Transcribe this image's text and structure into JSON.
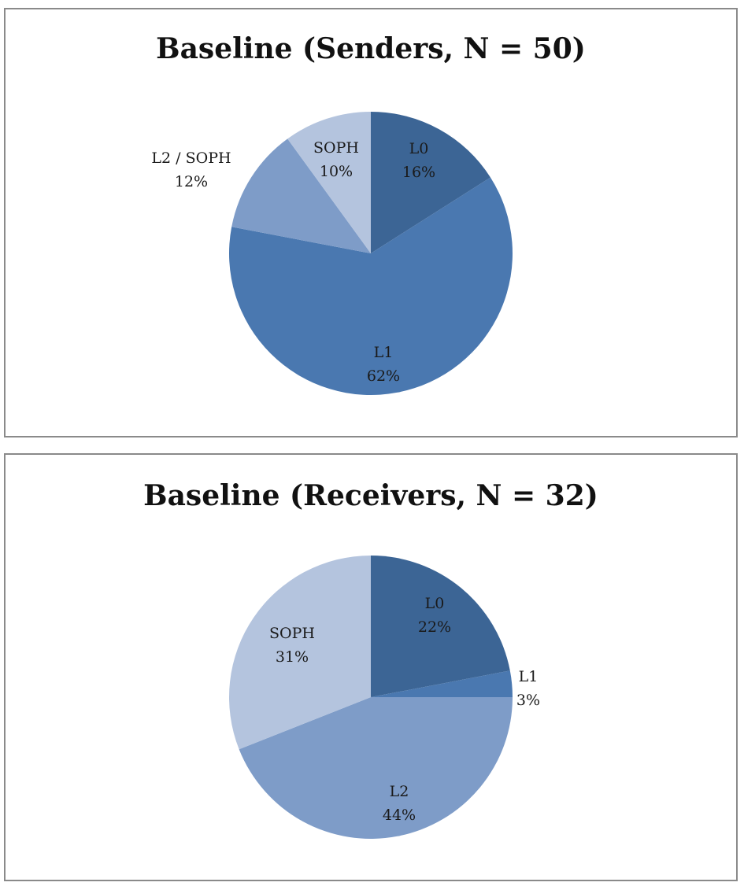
{
  "chart_data": [
    {
      "type": "pie",
      "title": "Baseline (Senders, N = 50)",
      "start_angle_deg": 0,
      "direction": "clockwise",
      "slices": [
        {
          "label": "L0",
          "value": 16,
          "percent_label": "16%",
          "color": "#3C6595"
        },
        {
          "label": "L1",
          "value": 62,
          "percent_label": "62%",
          "color": "#4A78B0"
        },
        {
          "label": "L2 / SOPH",
          "value": 12,
          "percent_label": "12%",
          "color": "#7E9CC8"
        },
        {
          "label": "SOPH",
          "value": 10,
          "percent_label": "10%",
          "color": "#B4C4DE"
        }
      ]
    },
    {
      "type": "pie",
      "title": "Baseline (Receivers, N = 32)",
      "start_angle_deg": 0,
      "direction": "clockwise",
      "slices": [
        {
          "label": "L0",
          "value": 22,
          "percent_label": "22%",
          "color": "#3C6595"
        },
        {
          "label": "L1",
          "value": 3,
          "percent_label": "3%",
          "color": "#4A78B0"
        },
        {
          "label": "L2",
          "value": 44,
          "percent_label": "44%",
          "color": "#7E9CC8"
        },
        {
          "label": "SOPH",
          "value": 31,
          "percent_label": "31%",
          "color": "#B4C4DE"
        }
      ]
    }
  ]
}
